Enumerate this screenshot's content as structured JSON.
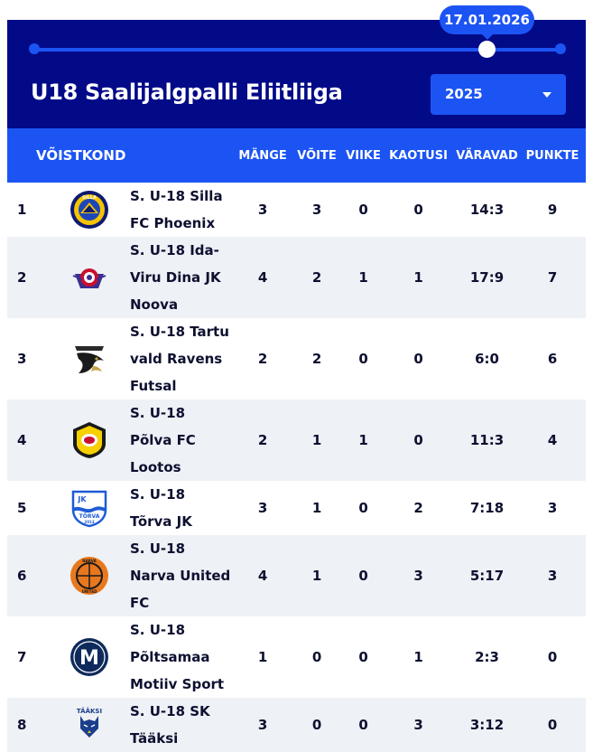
{
  "slider": {
    "date": "17.01.2026"
  },
  "header": {
    "title": "U18 Saalijalgpalli Eliitliiga",
    "season": "2025"
  },
  "columns": {
    "team": "VÕISTKOND",
    "played": "MÄNGE",
    "won": "VÕITE",
    "drawn": "VIIKE",
    "lost": "KAOTUSI",
    "goals": "VÄRAVAD",
    "points": "PUNKTE"
  },
  "rows": [
    {
      "pos": "1",
      "team": "S. U-18 Silla FC Phoenix",
      "played": "3",
      "won": "3",
      "drawn": "0",
      "lost": "0",
      "goals": "14:3",
      "points": "9",
      "logo": "silla-fc-phoenix-crest"
    },
    {
      "pos": "2",
      "team": "S. U-18 Ida-Viru Dina JK Noova",
      "played": "4",
      "won": "2",
      "drawn": "1",
      "lost": "1",
      "goals": "17:9",
      "points": "7",
      "logo": "dina-jk-noova-crest"
    },
    {
      "pos": "3",
      "team": "S. U-18 Tartu vald Ravens Futsal",
      "played": "2",
      "won": "2",
      "drawn": "0",
      "lost": "0",
      "goals": "6:0",
      "points": "6",
      "logo": "ravens-futsal-crest"
    },
    {
      "pos": "4",
      "team": "S. U-18 Põlva FC Lootos",
      "played": "2",
      "won": "1",
      "drawn": "1",
      "lost": "0",
      "goals": "11:3",
      "points": "4",
      "logo": "polva-fc-lootos-crest"
    },
    {
      "pos": "5",
      "team": "S. U-18 Tõrva JK",
      "played": "3",
      "won": "1",
      "drawn": "0",
      "lost": "2",
      "goals": "7:18",
      "points": "3",
      "logo": "torva-jk-crest"
    },
    {
      "pos": "6",
      "team": "S. U-18 Narva United FC",
      "played": "4",
      "won": "1",
      "drawn": "0",
      "lost": "3",
      "goals": "5:17",
      "points": "3",
      "logo": "narva-united-crest"
    },
    {
      "pos": "7",
      "team": "S. U-18 Põltsamaa Motiiv Sport",
      "played": "1",
      "won": "0",
      "drawn": "0",
      "lost": "1",
      "goals": "2:3",
      "points": "0",
      "logo": "motiiv-sport-crest"
    },
    {
      "pos": "8",
      "team": "S. U-18 SK Tääksi",
      "played": "3",
      "won": "0",
      "drawn": "0",
      "lost": "3",
      "goals": "3:12",
      "points": "0",
      "logo": "sk-taaksi-crest"
    }
  ],
  "logo_texts": {
    "silla": "SILLA",
    "torva_top": "JK",
    "torva_name": "TÕRVA",
    "torva_year": "2013",
    "narva_top": "NARVA",
    "narva_bottom": "UNITED",
    "motiiv_letter": "M",
    "taaksi": "TÄÄKSI"
  },
  "colors": {
    "header_bg": "#030a88",
    "accent": "#1c54f4",
    "row_alt": "#eef1f5",
    "text": "#0d1030"
  }
}
